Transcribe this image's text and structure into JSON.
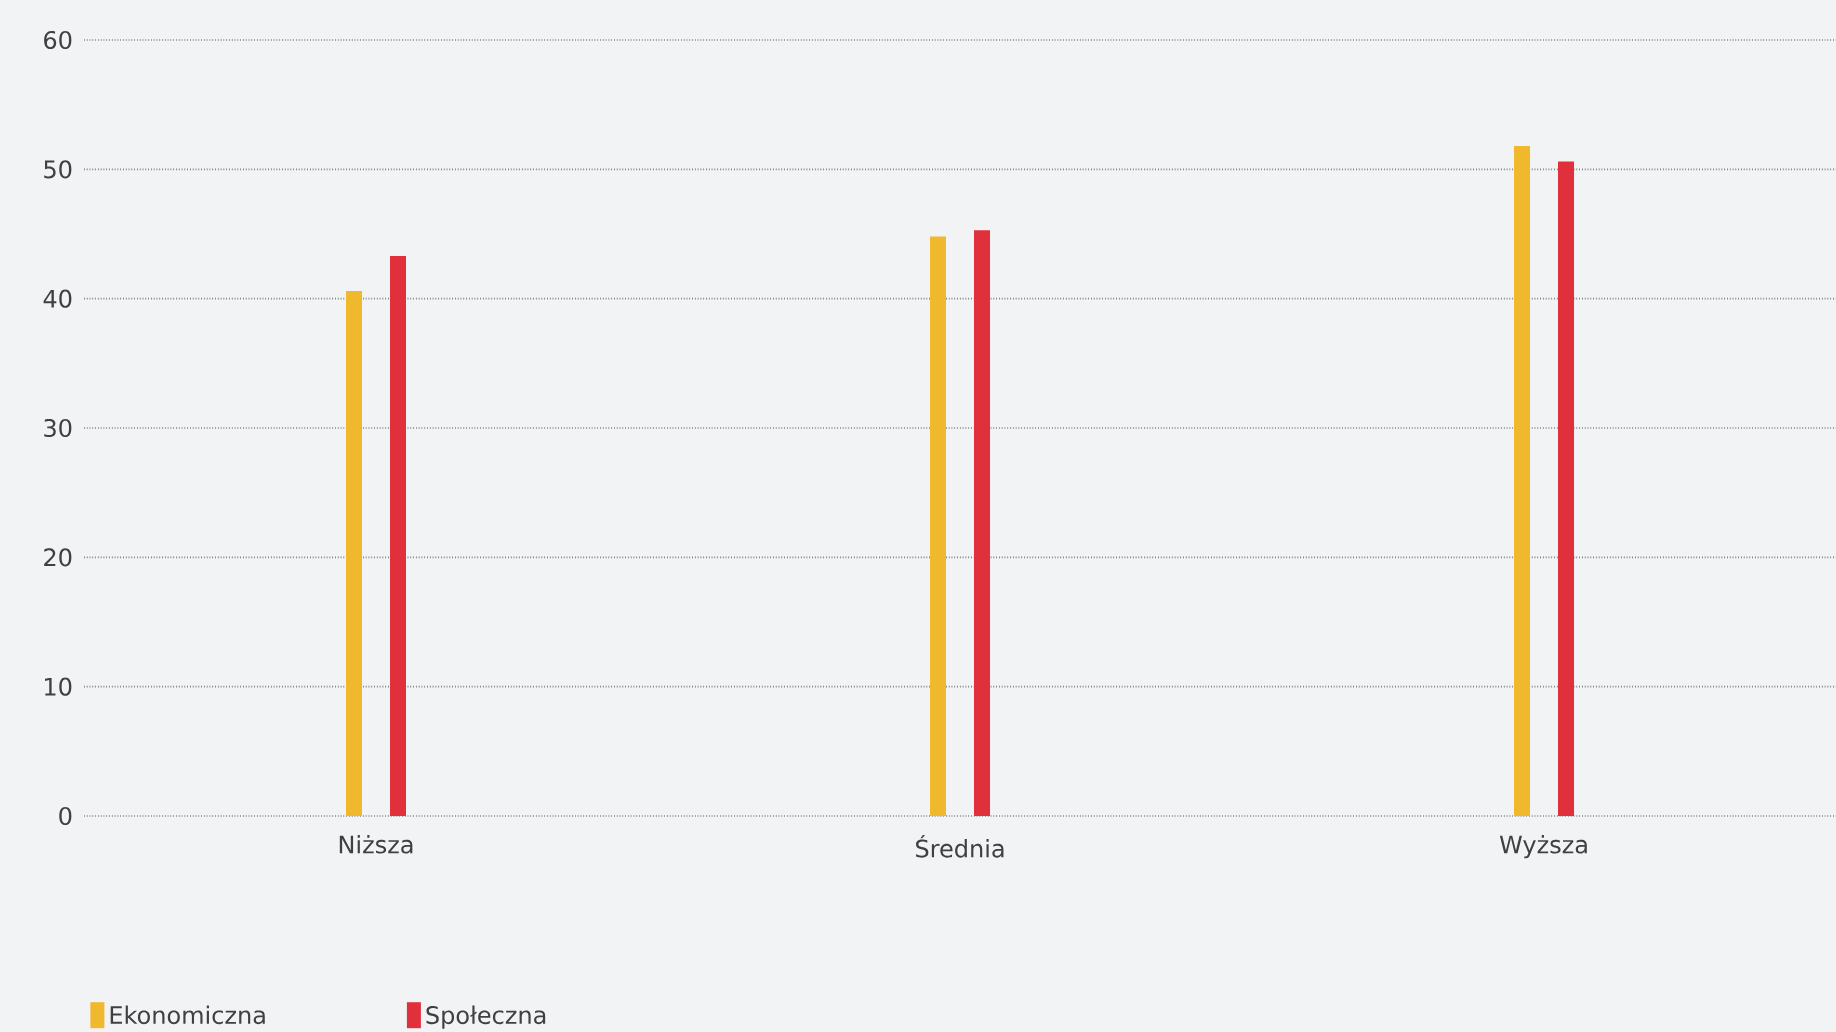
{
  "chart_data": {
    "type": "bar",
    "categories": [
      "Niższa",
      "Średnia",
      "Wyższa"
    ],
    "series": [
      {
        "name": "Ekonomiczna",
        "color": "#f0b92d",
        "values": [
          40.6,
          44.8,
          51.8
        ]
      },
      {
        "name": "Społeczna",
        "color": "#e0303b",
        "values": [
          43.3,
          45.3,
          50.6
        ]
      }
    ],
    "ylim": [
      0,
      60
    ],
    "yticks": [
      0,
      10,
      20,
      30,
      40,
      50,
      60
    ],
    "grid": "y",
    "legend": "bottom left"
  }
}
